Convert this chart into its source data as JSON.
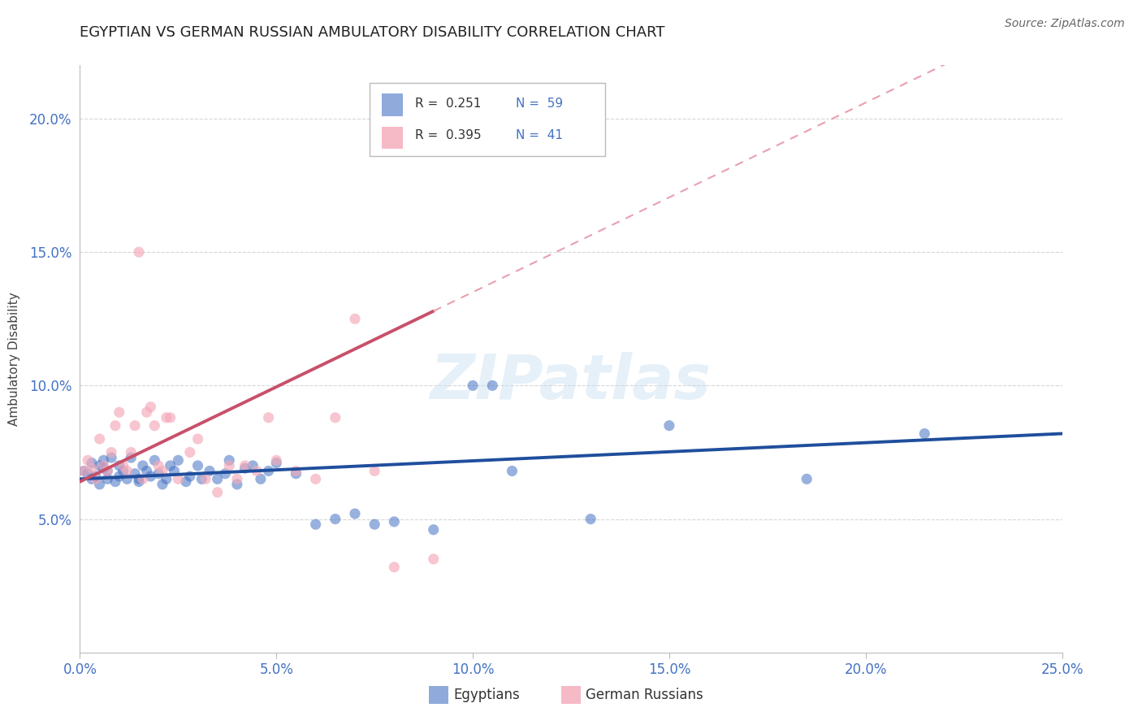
{
  "title": "EGYPTIAN VS GERMAN RUSSIAN AMBULATORY DISABILITY CORRELATION CHART",
  "source": "Source: ZipAtlas.com",
  "ylabel": "Ambulatory Disability",
  "xlim": [
    0.0,
    0.25
  ],
  "ylim": [
    0.0,
    0.22
  ],
  "xticks": [
    0.0,
    0.05,
    0.1,
    0.15,
    0.2,
    0.25
  ],
  "yticks": [
    0.05,
    0.1,
    0.15,
    0.2
  ],
  "xticklabels": [
    "0.0%",
    "5.0%",
    "10.0%",
    "15.0%",
    "20.0%",
    "25.0%"
  ],
  "yticklabels": [
    "5.0%",
    "10.0%",
    "15.0%",
    "20.0%"
  ],
  "legend_r1": "R =  0.251",
  "legend_n1": "N =  59",
  "legend_r2": "R =  0.395",
  "legend_n2": "N =  41",
  "color_blue": "#4472C4",
  "color_pink": "#F4A8B8",
  "color_blue_line": "#1F4E9C",
  "color_pink_line": "#C8506A",
  "color_dashed": "#E8A0B0",
  "background_color": "#FFFFFF",
  "watermark": "ZIPatlas",
  "eg_x": [
    0.001,
    0.002,
    0.003,
    0.003,
    0.004,
    0.005,
    0.005,
    0.006,
    0.006,
    0.007,
    0.007,
    0.008,
    0.009,
    0.01,
    0.01,
    0.011,
    0.012,
    0.013,
    0.014,
    0.015,
    0.015,
    0.016,
    0.017,
    0.018,
    0.019,
    0.02,
    0.021,
    0.022,
    0.023,
    0.024,
    0.025,
    0.027,
    0.028,
    0.03,
    0.031,
    0.033,
    0.035,
    0.037,
    0.038,
    0.04,
    0.042,
    0.044,
    0.046,
    0.048,
    0.05,
    0.055,
    0.06,
    0.065,
    0.07,
    0.075,
    0.08,
    0.09,
    0.1,
    0.105,
    0.11,
    0.13,
    0.15,
    0.185,
    0.215
  ],
  "eg_y": [
    0.068,
    0.067,
    0.065,
    0.071,
    0.066,
    0.063,
    0.07,
    0.069,
    0.072,
    0.065,
    0.068,
    0.073,
    0.064,
    0.07,
    0.066,
    0.068,
    0.065,
    0.073,
    0.067,
    0.065,
    0.064,
    0.07,
    0.068,
    0.066,
    0.072,
    0.067,
    0.063,
    0.065,
    0.07,
    0.068,
    0.072,
    0.064,
    0.066,
    0.07,
    0.065,
    0.068,
    0.065,
    0.067,
    0.072,
    0.063,
    0.069,
    0.07,
    0.065,
    0.068,
    0.071,
    0.067,
    0.048,
    0.05,
    0.052,
    0.048,
    0.049,
    0.046,
    0.1,
    0.1,
    0.068,
    0.05,
    0.085,
    0.065,
    0.082
  ],
  "gr_x": [
    0.001,
    0.002,
    0.003,
    0.004,
    0.005,
    0.006,
    0.007,
    0.008,
    0.009,
    0.01,
    0.011,
    0.012,
    0.013,
    0.014,
    0.015,
    0.016,
    0.017,
    0.018,
    0.019,
    0.02,
    0.021,
    0.022,
    0.023,
    0.025,
    0.028,
    0.03,
    0.032,
    0.035,
    0.038,
    0.04,
    0.042,
    0.045,
    0.048,
    0.05,
    0.055,
    0.06,
    0.065,
    0.07,
    0.075,
    0.08,
    0.09
  ],
  "gr_y": [
    0.068,
    0.072,
    0.069,
    0.065,
    0.08,
    0.07,
    0.068,
    0.075,
    0.085,
    0.09,
    0.07,
    0.068,
    0.075,
    0.085,
    0.15,
    0.065,
    0.09,
    0.092,
    0.085,
    0.07,
    0.068,
    0.088,
    0.088,
    0.065,
    0.075,
    0.08,
    0.065,
    0.06,
    0.07,
    0.065,
    0.07,
    0.068,
    0.088,
    0.072,
    0.068,
    0.065,
    0.088,
    0.125,
    0.068,
    0.032,
    0.035
  ]
}
